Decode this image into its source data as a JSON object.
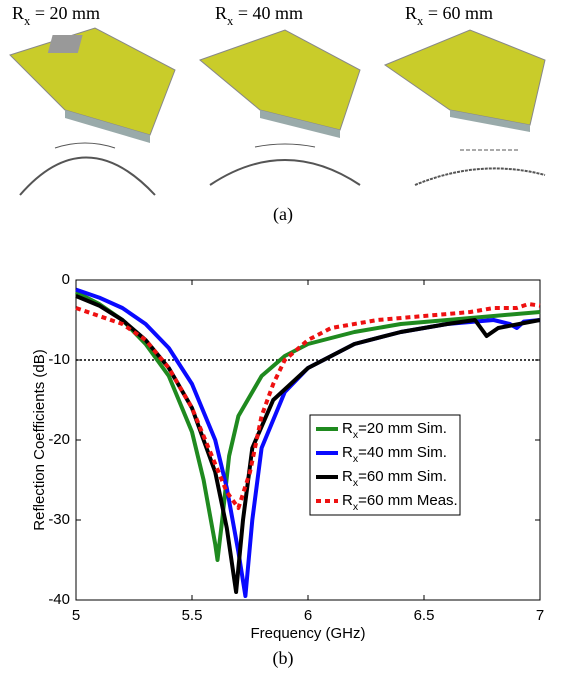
{
  "top_labels": [
    "Rx = 20 mm",
    "Rx = 40 mm",
    "Rx = 60 mm"
  ],
  "caption_a": "(a)",
  "caption_b": "(b)",
  "chart_data": {
    "type": "line",
    "xlabel": "Frequency (GHz)",
    "ylabel": "Reflection Coefficients (dB)",
    "xlim": [
      5,
      7
    ],
    "xticks": [
      5,
      5.5,
      6,
      6.5,
      7
    ],
    "ylim": [
      -40,
      0
    ],
    "yticks": [
      -40,
      -30,
      -20,
      -10,
      0
    ],
    "reference_line": -10,
    "legend": "lower right",
    "series": [
      {
        "name": "Rx=20 mm Sim.",
        "color": "#1f8a1f",
        "dash": false,
        "x": [
          5,
          5.1,
          5.2,
          5.3,
          5.4,
          5.5,
          5.55,
          5.6,
          5.61,
          5.63,
          5.66,
          5.7,
          5.8,
          5.9,
          6,
          6.2,
          6.4,
          6.6,
          6.8,
          7
        ],
        "values": [
          -1.5,
          -3,
          -5,
          -8,
          -12,
          -19,
          -25,
          -33,
          -35,
          -30,
          -22,
          -17,
          -12,
          -9.5,
          -8,
          -6.5,
          -5.5,
          -5,
          -4.5,
          -4
        ]
      },
      {
        "name": "Rx=40 mm Sim.",
        "color": "#0a0aff",
        "dash": false,
        "x": [
          5,
          5.1,
          5.2,
          5.3,
          5.4,
          5.5,
          5.6,
          5.65,
          5.7,
          5.73,
          5.76,
          5.8,
          5.9,
          6,
          6.2,
          6.4,
          6.6,
          6.8,
          6.87,
          6.9,
          6.93,
          7
        ],
        "values": [
          -1.2,
          -2.2,
          -3.5,
          -5.5,
          -8.5,
          -13,
          -20,
          -26,
          -34,
          -39.5,
          -30,
          -21,
          -14,
          -11,
          -8,
          -6.5,
          -5.5,
          -5,
          -5.5,
          -6,
          -5.2,
          -5
        ]
      },
      {
        "name": "Rx=60 mm Sim.",
        "color": "#000000",
        "dash": false,
        "x": [
          5,
          5.1,
          5.2,
          5.3,
          5.4,
          5.5,
          5.6,
          5.65,
          5.69,
          5.72,
          5.76,
          5.85,
          6,
          6.2,
          6.4,
          6.6,
          6.72,
          6.77,
          6.82,
          7
        ],
        "values": [
          -2,
          -3.2,
          -5,
          -7.5,
          -11,
          -16,
          -24,
          -31,
          -39,
          -30,
          -21,
          -15,
          -11,
          -8,
          -6.5,
          -5.5,
          -5,
          -7,
          -6,
          -5
        ]
      },
      {
        "name": "Rx=60 mm Meas.",
        "color": "#ee1111",
        "dash": true,
        "x": [
          5,
          5.1,
          5.2,
          5.3,
          5.4,
          5.5,
          5.6,
          5.65,
          5.7,
          5.75,
          5.8,
          5.85,
          5.9,
          6,
          6.1,
          6.3,
          6.5,
          6.7,
          6.8,
          6.9,
          6.95,
          7
        ],
        "values": [
          -3.5,
          -4.5,
          -5.5,
          -7.5,
          -11,
          -16,
          -23,
          -26.5,
          -28.5,
          -24,
          -17,
          -13,
          -10,
          -7.5,
          -6,
          -5,
          -4.5,
          -4,
          -3.5,
          -3.5,
          -3,
          -3.2
        ]
      }
    ]
  }
}
